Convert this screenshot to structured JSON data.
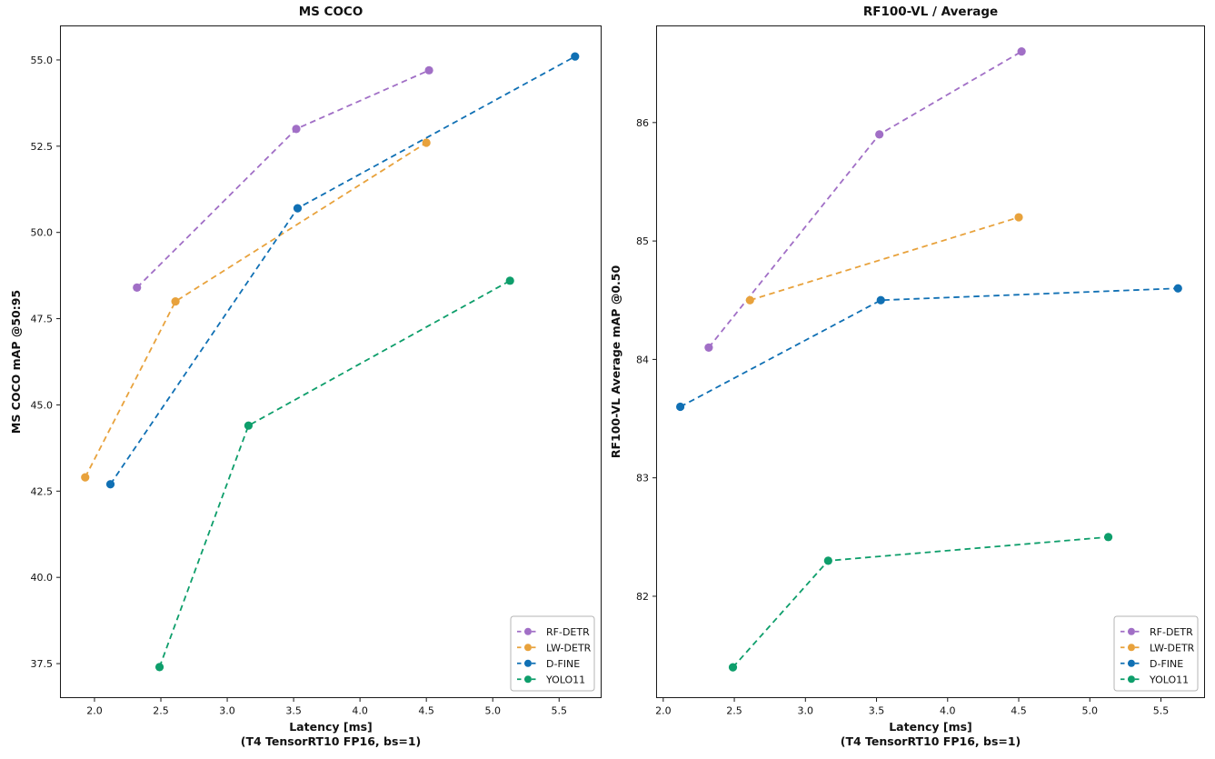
{
  "figure": {
    "background": "#ffffff",
    "text_color": "#111111",
    "spine_color": "#1a1a1a",
    "legend_border_color": "#b5b5b5"
  },
  "chart_data": [
    {
      "type": "line",
      "title": "MS COCO",
      "xlabel": "Latency [ms]",
      "xlabel_note": "(T4 TensorRT10 FP16, bs=1)",
      "ylabel": "MS COCO mAP @50:95",
      "xlim": [
        1.74,
        5.82
      ],
      "ylim": [
        36.5,
        56.0
      ],
      "xtick_values": [
        2.0,
        2.5,
        3.0,
        3.5,
        4.0,
        4.5,
        5.0,
        5.5
      ],
      "xtick_labels": [
        "2.0",
        "2.5",
        "3.0",
        "3.5",
        "4.0",
        "4.5",
        "5.0",
        "5.5"
      ],
      "ytick_values": [
        37.5,
        40.0,
        42.5,
        45.0,
        47.5,
        50.0,
        52.5,
        55.0
      ],
      "ytick_labels": [
        "37.5",
        "40.0",
        "42.5",
        "45.0",
        "47.5",
        "50.0",
        "52.5",
        "55.0"
      ],
      "grid": false,
      "legend_position": "lower right",
      "line_style": "dashed",
      "marker": "circle",
      "series": [
        {
          "name": "RF-DETR",
          "color": "#a16fc6",
          "x": [
            2.32,
            3.52,
            4.52
          ],
          "y": [
            48.4,
            53.0,
            54.7
          ]
        },
        {
          "name": "LW-DETR",
          "color": "#e8a23c",
          "x": [
            1.93,
            2.61,
            4.5
          ],
          "y": [
            42.9,
            48.0,
            52.6
          ]
        },
        {
          "name": "D-FINE",
          "color": "#1070b4",
          "x": [
            2.12,
            3.53,
            5.62
          ],
          "y": [
            42.7,
            50.7,
            55.1
          ]
        },
        {
          "name": "YOLO11",
          "color": "#0e9e6b",
          "x": [
            2.49,
            3.16,
            5.13
          ],
          "y": [
            37.4,
            44.4,
            48.6
          ]
        }
      ]
    },
    {
      "type": "line",
      "title": "RF100-VL / Average",
      "xlabel": "Latency [ms]",
      "xlabel_note": "(T4 TensorRT10 FP16, bs=1)",
      "ylabel": "RF100-VL Average mAP @0.50",
      "xlim": [
        1.95,
        5.81
      ],
      "ylim": [
        81.14,
        86.82
      ],
      "xtick_values": [
        2.0,
        2.5,
        3.0,
        3.5,
        4.0,
        4.5,
        5.0,
        5.5
      ],
      "xtick_labels": [
        "2.0",
        "2.5",
        "3.0",
        "3.5",
        "4.0",
        "4.5",
        "5.0",
        "5.5"
      ],
      "ytick_values": [
        82,
        83,
        84,
        85,
        86
      ],
      "ytick_labels": [
        "82",
        "83",
        "84",
        "85",
        "86"
      ],
      "grid": false,
      "legend_position": "lower right",
      "line_style": "dashed",
      "marker": "circle",
      "series": [
        {
          "name": "RF-DETR",
          "color": "#a16fc6",
          "x": [
            2.32,
            3.52,
            4.52
          ],
          "y": [
            84.1,
            85.9,
            86.6
          ]
        },
        {
          "name": "LW-DETR",
          "color": "#e8a23c",
          "x": [
            2.61,
            4.5
          ],
          "y": [
            84.5,
            85.2
          ]
        },
        {
          "name": "D-FINE",
          "color": "#1070b4",
          "x": [
            2.12,
            3.53,
            5.62
          ],
          "y": [
            83.6,
            84.5,
            84.6
          ]
        },
        {
          "name": "YOLO11",
          "color": "#0e9e6b",
          "x": [
            2.49,
            3.16,
            5.13
          ],
          "y": [
            81.4,
            82.3,
            82.5
          ]
        }
      ]
    }
  ],
  "legend": {
    "entries": [
      "RF-DETR",
      "LW-DETR",
      "D-FINE",
      "YOLO11"
    ]
  }
}
